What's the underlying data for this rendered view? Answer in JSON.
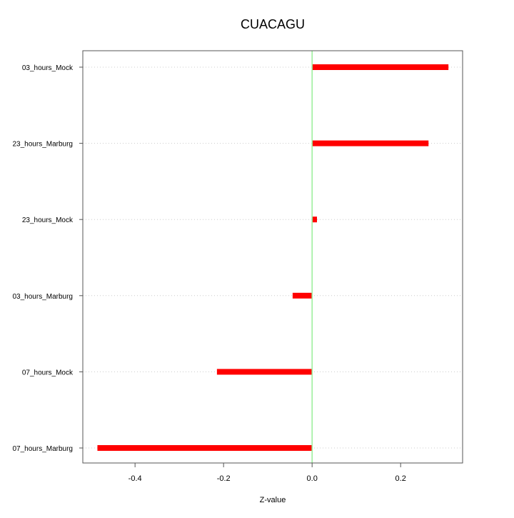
{
  "chart_data": {
    "type": "bar",
    "orientation": "horizontal",
    "title": "CUACAGU",
    "xlabel": "Z-value",
    "ylabel": "",
    "categories": [
      "03_hours_Mock",
      "23_hours_Marburg",
      "23_hours_Mock",
      "03_hours_Marburg",
      "07_hours_Mock",
      "07_hours_Marburg"
    ],
    "values": [
      0.308,
      0.263,
      0.011,
      -0.044,
      -0.215,
      -0.485
    ],
    "xlim": [
      -0.518,
      0.34
    ],
    "xticks": [
      -0.4,
      -0.2,
      0.0,
      0.2
    ],
    "xtick_labels": [
      "-0.4",
      "-0.2",
      "0.0",
      "0.2"
    ],
    "grid": "horizontal dotted",
    "reference_line": 0,
    "colors": {
      "bar": "#ff0000",
      "reference_line": "#99ee99",
      "grid": "#cccccc",
      "axis": "#555555"
    }
  }
}
